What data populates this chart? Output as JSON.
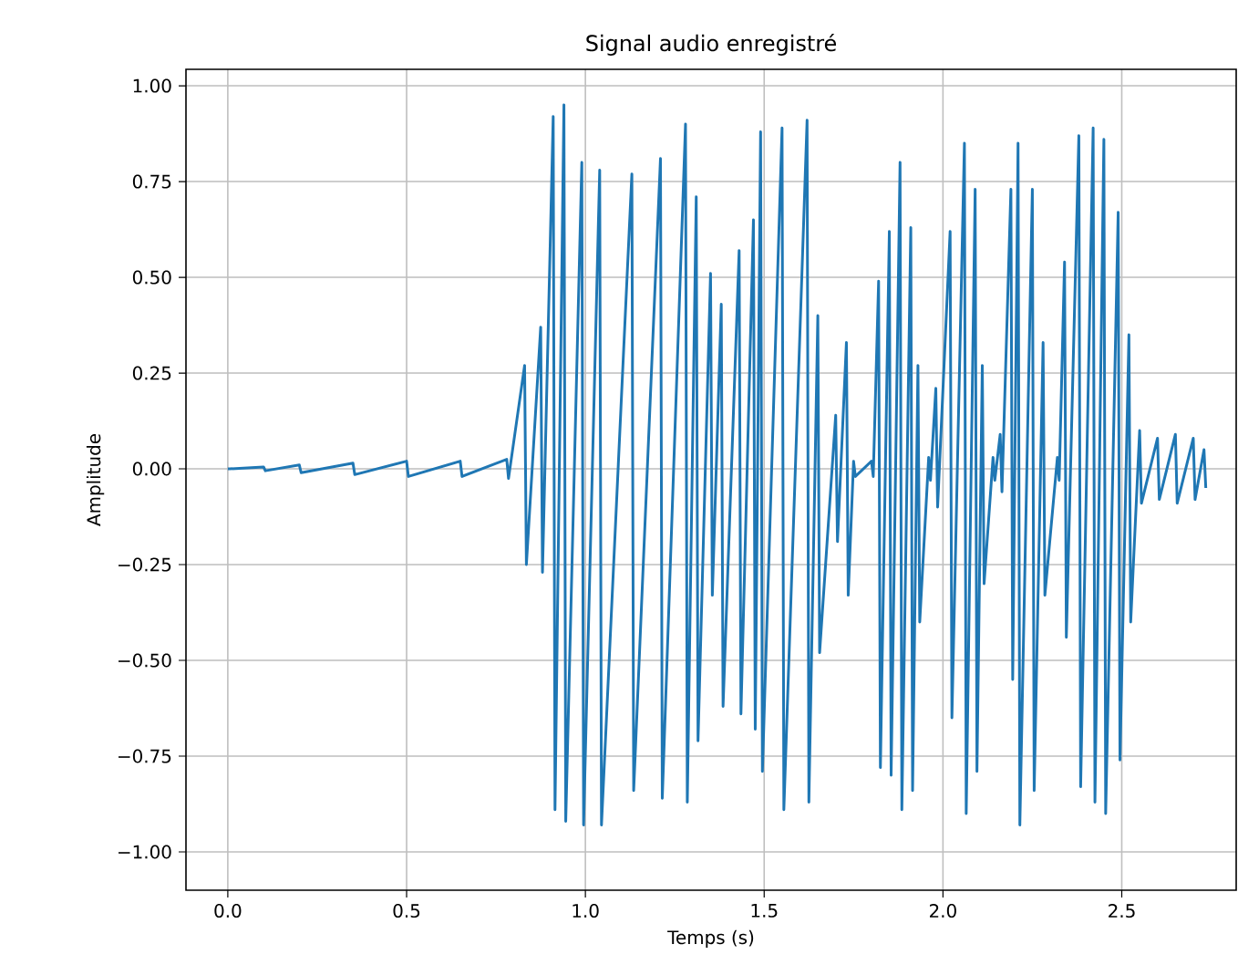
{
  "chart_data": {
    "type": "line",
    "title": "Signal audio enregistré",
    "xlabel": "Temps (s)",
    "ylabel": "Amplitude",
    "series": [
      {
        "color": "#1f77b4",
        "x": [
          0,
          0.005,
          0.1,
          0.105,
          0.2,
          0.205,
          0.35,
          0.355,
          0.5,
          0.505,
          0.65,
          0.655,
          0.78,
          0.785,
          0.83,
          0.835,
          0.875,
          0.88,
          0.91,
          0.915,
          0.94,
          0.945,
          0.99,
          0.995,
          1.04,
          1.045,
          1.13,
          1.135,
          1.21,
          1.215,
          1.28,
          1.285,
          1.31,
          1.315,
          1.35,
          1.355,
          1.38,
          1.385,
          1.43,
          1.435,
          1.47,
          1.475,
          1.49,
          1.495,
          1.55,
          1.555,
          1.62,
          1.625,
          1.65,
          1.655,
          1.7,
          1.705,
          1.73,
          1.735,
          1.75,
          1.755,
          1.8,
          1.805,
          1.82,
          1.825,
          1.85,
          1.855,
          1.88,
          1.885,
          1.91,
          1.915,
          1.93,
          1.935,
          1.96,
          1.965,
          1.98,
          1.985,
          2.02,
          2.025,
          2.06,
          2.065,
          2.09,
          2.095,
          2.11,
          2.115,
          2.14,
          2.145,
          2.16,
          2.165,
          2.19,
          2.195,
          2.21,
          2.215,
          2.25,
          2.255,
          2.28,
          2.285,
          2.32,
          2.325,
          2.34,
          2.345,
          2.38,
          2.385,
          2.42,
          2.425,
          2.45,
          2.455,
          2.49,
          2.495,
          2.52,
          2.525,
          2.55,
          2.555,
          2.6,
          2.605,
          2.65,
          2.655,
          2.7,
          2.705,
          2.73,
          2.735
        ],
        "values": [
          0,
          0,
          0.005,
          -0.005,
          0.01,
          -0.01,
          0.015,
          -0.015,
          0.02,
          -0.02,
          0.02,
          -0.02,
          0.025,
          -0.025,
          0.27,
          -0.25,
          0.37,
          -0.27,
          0.92,
          -0.89,
          0.95,
          -0.92,
          0.8,
          -0.93,
          0.78,
          -0.93,
          0.77,
          -0.84,
          0.81,
          -0.86,
          0.9,
          -0.87,
          0.71,
          -0.71,
          0.51,
          -0.33,
          0.43,
          -0.62,
          0.57,
          -0.64,
          0.65,
          -0.68,
          0.88,
          -0.79,
          0.89,
          -0.89,
          0.91,
          -0.87,
          0.4,
          -0.48,
          0.14,
          -0.19,
          0.33,
          -0.33,
          0.02,
          -0.02,
          0.02,
          -0.02,
          0.49,
          -0.78,
          0.62,
          -0.8,
          0.8,
          -0.89,
          0.63,
          -0.84,
          0.27,
          -0.4,
          0.03,
          -0.03,
          0.21,
          -0.1,
          0.62,
          -0.65,
          0.85,
          -0.9,
          0.73,
          -0.79,
          0.27,
          -0.3,
          0.03,
          -0.03,
          0.09,
          -0.06,
          0.73,
          -0.55,
          0.85,
          -0.93,
          0.73,
          -0.84,
          0.33,
          -0.33,
          0.03,
          -0.03,
          0.54,
          -0.44,
          0.87,
          -0.83,
          0.89,
          -0.87,
          0.86,
          -0.9,
          0.67,
          -0.76,
          0.35,
          -0.4,
          0.1,
          -0.09,
          0.08,
          -0.08,
          0.09,
          -0.09,
          0.08,
          -0.08,
          0.05,
          -0.05
        ]
      }
    ],
    "xlim": [
      -0.117,
      2.82
    ],
    "ylim": [
      -1.1,
      1.043
    ],
    "xticks": [
      {
        "value": 0,
        "label": "0.0"
      },
      {
        "value": 0.5,
        "label": "0.5"
      },
      {
        "value": 1,
        "label": "1.0"
      },
      {
        "value": 1.5,
        "label": "1.5"
      },
      {
        "value": 2,
        "label": "2.0"
      },
      {
        "value": 2.5,
        "label": "2.5"
      }
    ],
    "yticks": [
      {
        "value": -1,
        "label": "−1.00"
      },
      {
        "value": -0.75,
        "label": "−0.75"
      },
      {
        "value": -0.5,
        "label": "−0.50"
      },
      {
        "value": -0.25,
        "label": "−0.25"
      },
      {
        "value": 0,
        "label": "0.00"
      },
      {
        "value": 0.25,
        "label": "0.25"
      },
      {
        "value": 0.5,
        "label": "0.50"
      },
      {
        "value": 0.75,
        "label": "0.75"
      },
      {
        "value": 1,
        "label": "1.00"
      }
    ],
    "grid": true,
    "marker": "none",
    "line_style": "solid"
  }
}
